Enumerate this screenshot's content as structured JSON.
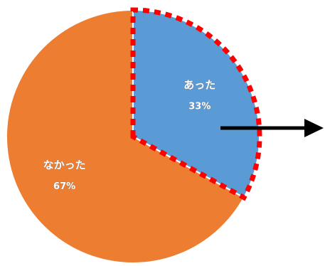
{
  "chart_data": {
    "type": "pie",
    "title": "",
    "slices": [
      {
        "label": "あった",
        "value": 33,
        "value_label": "33%",
        "color": "#5b9bd5",
        "highlighted": true
      },
      {
        "label": "なかった",
        "value": 67,
        "value_label": "67%",
        "color": "#ed7d31",
        "highlighted": false
      }
    ],
    "start_angle_deg": 0,
    "direction": "clockwise",
    "highlight_style": {
      "outline": "dashed",
      "outline_color": "#ff0000",
      "callout": "arrow",
      "arrow_color": "#000000"
    },
    "legend": "none"
  }
}
